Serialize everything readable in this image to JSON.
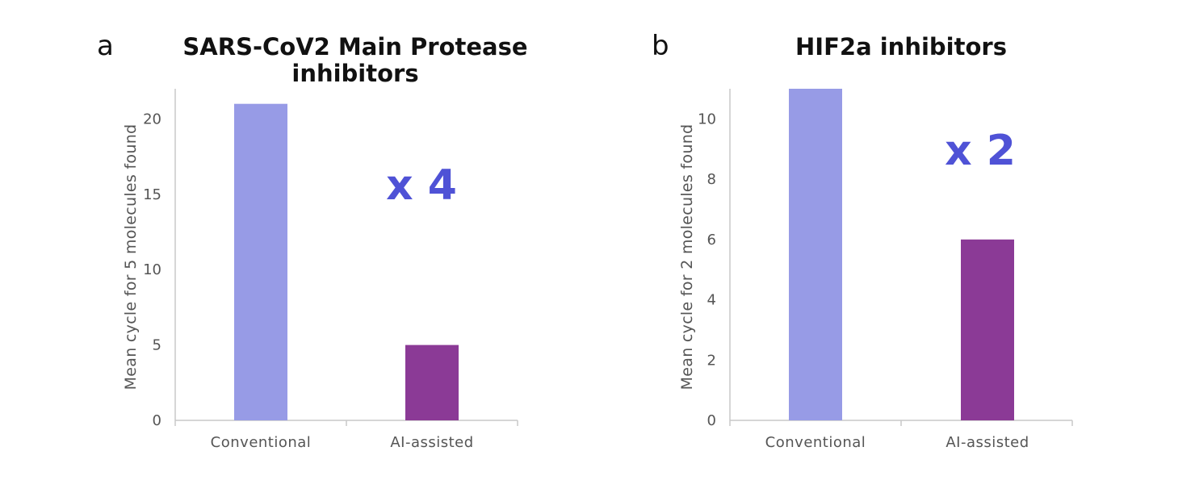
{
  "chart_data": [
    {
      "panel": "a",
      "type": "bar",
      "title_lines": [
        "SARS-CoV2 Main Protease",
        "inhibitors"
      ],
      "ylabel": "Mean cycle for 5 molecules found",
      "categories": [
        "Conventional",
        "AI-assisted"
      ],
      "values": [
        21,
        5
      ],
      "ylim": [
        0,
        22
      ],
      "yticks": [
        0,
        5,
        10,
        15,
        20
      ],
      "annotation": "x 4",
      "bar_colors": [
        "#979be6",
        "#8b3a96"
      ],
      "grid": false,
      "legend": "none"
    },
    {
      "panel": "b",
      "type": "bar",
      "title_lines": [
        "HIF2a inhibitors"
      ],
      "ylabel": "Mean cycle for 2 molecules found",
      "categories": [
        "Conventional",
        "AI-assisted"
      ],
      "values": [
        11,
        6
      ],
      "ylim": [
        0,
        11
      ],
      "yticks": [
        0,
        2,
        4,
        6,
        8,
        10
      ],
      "annotation": "x 2",
      "bar_colors": [
        "#979be6",
        "#8b3a96"
      ],
      "grid": false,
      "legend": "none"
    }
  ]
}
